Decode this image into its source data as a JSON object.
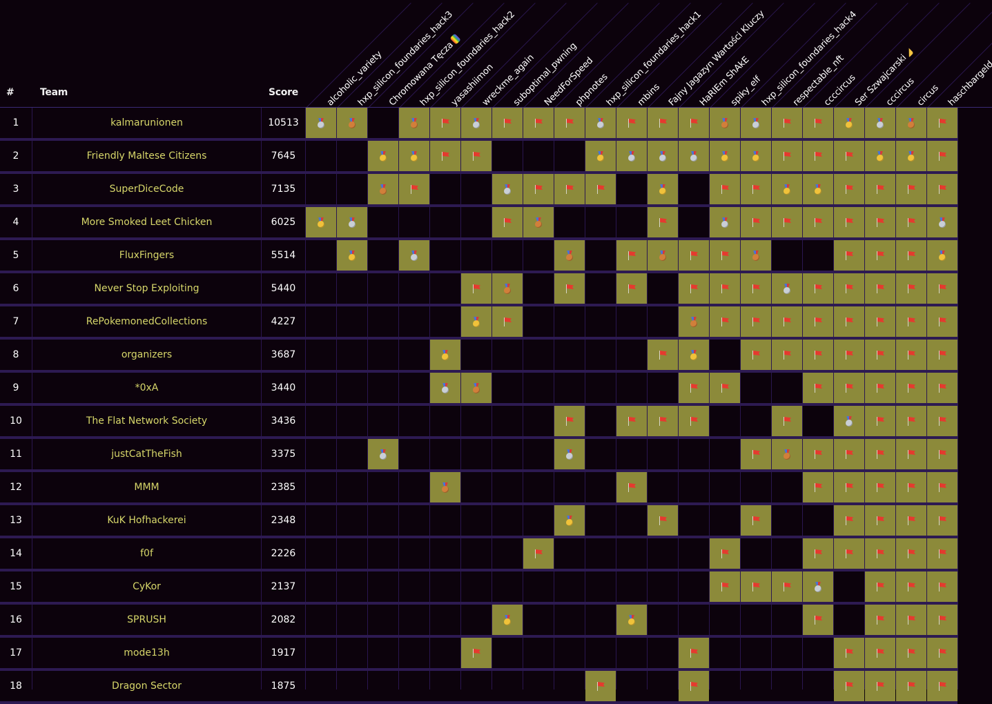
{
  "headers": {
    "rank": "#",
    "team": "Team",
    "score": "Score"
  },
  "challenges": [
    {
      "name": "alcoholic_variety",
      "emoji": ""
    },
    {
      "name": "hxp_silicon_foundaries_hack3",
      "emoji": ""
    },
    {
      "name": "Chromowana Tęcza",
      "emoji": "rainbow"
    },
    {
      "name": "hxp_silicon_foundaries_hack2",
      "emoji": ""
    },
    {
      "name": "yasashiimon",
      "emoji": ""
    },
    {
      "name": "wreckme_again",
      "emoji": ""
    },
    {
      "name": "suboptimal_pwning",
      "emoji": ""
    },
    {
      "name": "NeedForSpeed",
      "emoji": ""
    },
    {
      "name": "phpnotes",
      "emoji": ""
    },
    {
      "name": "hxp_silicon_foundaries_hack1",
      "emoji": ""
    },
    {
      "name": "mbins",
      "emoji": ""
    },
    {
      "name": "Fajny Jagazyn Wartości Kluczy",
      "emoji": ""
    },
    {
      "name": "HaRIEm ShAkE",
      "emoji": ""
    },
    {
      "name": "spiky_elf",
      "emoji": ""
    },
    {
      "name": "hxp_silicon_foundaries_hack4",
      "emoji": ""
    },
    {
      "name": "respectable_nft",
      "emoji": ""
    },
    {
      "name": "ccccircus",
      "emoji": ""
    },
    {
      "name": "Ser Szwajcarski",
      "emoji": "cheese"
    },
    {
      "name": "cccircus",
      "emoji": ""
    },
    {
      "name": "circus",
      "emoji": ""
    },
    {
      "name": "haschbargeld",
      "emoji": ""
    }
  ],
  "icon_names": {
    "F": "flag-icon",
    "G": "gold-medal-icon",
    "S": "silver-medal-icon",
    "B": "bronze-medal-icon"
  },
  "colors": {
    "background": "#0c020c",
    "solved_cell": "#8c8a3a",
    "team_name": "#d7d76a",
    "row_separator": "#2d1a52"
  },
  "teams": [
    {
      "rank": "1",
      "name": "kalmarunionen",
      "score": "10513",
      "solves": [
        "S",
        "B",
        "",
        "B",
        "F",
        "S",
        "F",
        "F",
        "F",
        "S",
        "F",
        "F",
        "F",
        "B",
        "S",
        "F",
        "F",
        "G",
        "S",
        "B",
        "F"
      ]
    },
    {
      "rank": "2",
      "name": "Friendly Maltese Citizens",
      "score": "7645",
      "solves": [
        "",
        "",
        "G",
        "G",
        "F",
        "F",
        "",
        "",
        "",
        "G",
        "S",
        "S",
        "S",
        "G",
        "G",
        "F",
        "F",
        "F",
        "G",
        "G",
        "F"
      ]
    },
    {
      "rank": "3",
      "name": "SuperDiceCode",
      "score": "7135",
      "solves": [
        "",
        "",
        "B",
        "F",
        "",
        "",
        "S",
        "F",
        "F",
        "F",
        "",
        "G",
        "",
        "F",
        "F",
        "G",
        "G",
        "F",
        "F",
        "F",
        "F"
      ]
    },
    {
      "rank": "4",
      "name": "More Smoked Leet Chicken",
      "score": "6025",
      "solves": [
        "G",
        "S",
        "",
        "",
        "",
        "",
        "F",
        "B",
        "",
        "",
        "",
        "F",
        "",
        "S",
        "F",
        "F",
        "F",
        "F",
        "F",
        "F",
        "S"
      ]
    },
    {
      "rank": "5",
      "name": "FluxFingers",
      "score": "5514",
      "solves": [
        "",
        "G",
        "",
        "S",
        "",
        "",
        "",
        "",
        "B",
        "",
        "F",
        "B",
        "F",
        "F",
        "B",
        "",
        "",
        "F",
        "F",
        "F",
        "G"
      ]
    },
    {
      "rank": "6",
      "name": "Never Stop Exploiting",
      "score": "5440",
      "solves": [
        "",
        "",
        "",
        "",
        "",
        "F",
        "B",
        "",
        "F",
        "",
        "F",
        "",
        "F",
        "F",
        "F",
        "S",
        "F",
        "F",
        "F",
        "F",
        "F"
      ]
    },
    {
      "rank": "7",
      "name": "RePokemonedCollections",
      "score": "4227",
      "solves": [
        "",
        "",
        "",
        "",
        "",
        "G",
        "F",
        "",
        "",
        "",
        "",
        "",
        "B",
        "F",
        "F",
        "F",
        "F",
        "F",
        "F",
        "F",
        "F"
      ]
    },
    {
      "rank": "8",
      "name": "organizers",
      "score": "3687",
      "solves": [
        "",
        "",
        "",
        "",
        "G",
        "",
        "",
        "",
        "",
        "",
        "",
        "F",
        "G",
        "",
        "F",
        "F",
        "F",
        "F",
        "F",
        "F",
        "F"
      ]
    },
    {
      "rank": "9",
      "name": "*0xA",
      "score": "3440",
      "solves": [
        "",
        "",
        "",
        "",
        "S",
        "B",
        "",
        "",
        "",
        "",
        "",
        "",
        "F",
        "F",
        "",
        "",
        "F",
        "F",
        "F",
        "F",
        "F"
      ]
    },
    {
      "rank": "10",
      "name": "The Flat Network Society",
      "score": "3436",
      "solves": [
        "",
        "",
        "",
        "",
        "",
        "",
        "",
        "",
        "F",
        "",
        "F",
        "F",
        "F",
        "",
        "",
        "F",
        "",
        "S",
        "F",
        "F",
        "F"
      ]
    },
    {
      "rank": "11",
      "name": "justCatTheFish",
      "score": "3375",
      "solves": [
        "",
        "",
        "S",
        "",
        "",
        "",
        "",
        "",
        "S",
        "",
        "",
        "",
        "",
        "",
        "F",
        "B",
        "F",
        "F",
        "F",
        "F",
        "F"
      ]
    },
    {
      "rank": "12",
      "name": "MMM",
      "score": "2385",
      "solves": [
        "",
        "",
        "",
        "",
        "B",
        "",
        "",
        "",
        "",
        "",
        "F",
        "",
        "",
        "",
        "",
        "",
        "F",
        "F",
        "F",
        "F",
        "F"
      ]
    },
    {
      "rank": "13",
      "name": "KuK Hofhackerei",
      "score": "2348",
      "solves": [
        "",
        "",
        "",
        "",
        "",
        "",
        "",
        "",
        "G",
        "",
        "",
        "F",
        "",
        "",
        "F",
        "",
        "",
        "F",
        "F",
        "F",
        "F"
      ]
    },
    {
      "rank": "14",
      "name": "f0f",
      "score": "2226",
      "solves": [
        "",
        "",
        "",
        "",
        "",
        "",
        "",
        "F",
        "",
        "",
        "",
        "",
        "",
        "F",
        "",
        "",
        "F",
        "F",
        "F",
        "F",
        "F"
      ]
    },
    {
      "rank": "15",
      "name": "CyKor",
      "score": "2137",
      "solves": [
        "",
        "",
        "",
        "",
        "",
        "",
        "",
        "",
        "",
        "",
        "",
        "",
        "",
        "F",
        "F",
        "F",
        "S",
        "",
        "F",
        "F",
        "F"
      ]
    },
    {
      "rank": "16",
      "name": "SPRUSH",
      "score": "2082",
      "solves": [
        "",
        "",
        "",
        "",
        "",
        "",
        "G",
        "",
        "",
        "",
        "G",
        "",
        "",
        "",
        "",
        "",
        "F",
        "",
        "F",
        "F",
        "F"
      ]
    },
    {
      "rank": "17",
      "name": "mode13h",
      "score": "1917",
      "solves": [
        "",
        "",
        "",
        "",
        "",
        "F",
        "",
        "",
        "",
        "",
        "",
        "",
        "F",
        "",
        "",
        "",
        "",
        "F",
        "F",
        "F",
        "F"
      ]
    },
    {
      "rank": "18",
      "name": "Dragon Sector",
      "score": "1875",
      "solves": [
        "",
        "",
        "",
        "",
        "",
        "",
        "",
        "",
        "",
        "F",
        "",
        "",
        "F",
        "",
        "",
        "",
        "",
        "F",
        "F",
        "F",
        "F"
      ]
    }
  ]
}
